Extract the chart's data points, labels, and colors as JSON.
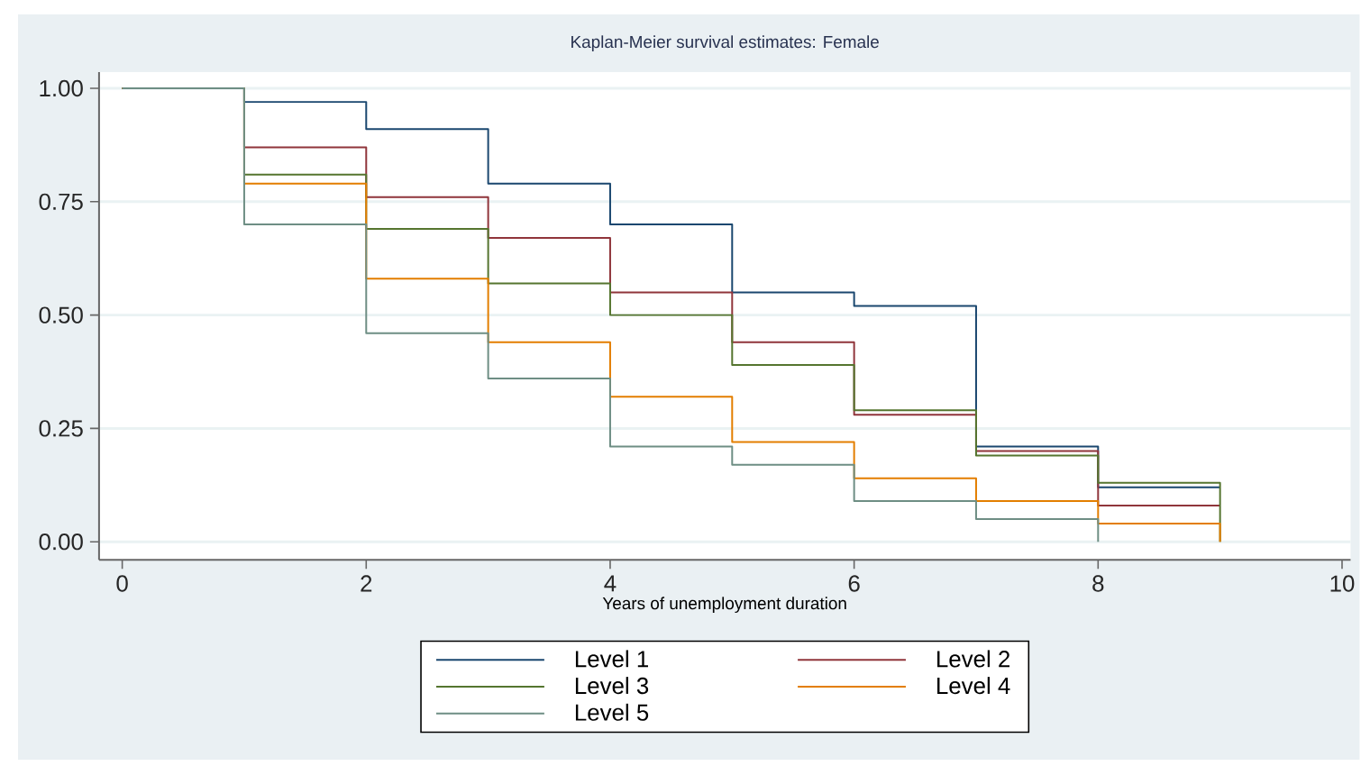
{
  "chart_data": {
    "type": "step",
    "title": "Kaplan-Meier survival estimates: Female",
    "xlabel": "Years of unemployment duration",
    "xlim": [
      -0.19,
      10.07
    ],
    "ylim": [
      -0.04,
      1.036
    ],
    "xticks": [
      0,
      2,
      4,
      6,
      8,
      10
    ],
    "yticks": [
      {
        "value": 0,
        "label": "0.00"
      },
      {
        "value": 0.25,
        "label": "0.25"
      },
      {
        "value": 0.5,
        "label": "0.50"
      },
      {
        "value": 0.75,
        "label": "0.75"
      },
      {
        "value": 1,
        "label": "1.00"
      }
    ],
    "grid": "y",
    "legend": "bottom",
    "series": [
      {
        "name": "Level 1",
        "color": "#1a476f",
        "x": [
          0,
          1,
          2,
          3,
          4,
          5,
          6,
          7,
          8,
          9
        ],
        "values": [
          1.0,
          0.97,
          0.91,
          0.79,
          0.7,
          0.55,
          0.52,
          0.21,
          0.12,
          0.12
        ]
      },
      {
        "name": "Level 2",
        "color": "#90353b",
        "x": [
          0,
          1,
          2,
          3,
          4,
          5,
          6,
          7,
          8,
          9
        ],
        "values": [
          1.0,
          0.87,
          0.76,
          0.67,
          0.55,
          0.44,
          0.28,
          0.2,
          0.08,
          0.08
        ]
      },
      {
        "name": "Level 3",
        "color": "#55752f",
        "x": [
          0,
          1,
          2,
          3,
          4,
          5,
          6,
          7,
          8,
          9
        ],
        "values": [
          1.0,
          0.81,
          0.69,
          0.57,
          0.5,
          0.39,
          0.29,
          0.19,
          0.13,
          0.0
        ]
      },
      {
        "name": "Level 4",
        "color": "#e37e00",
        "x": [
          0,
          1,
          2,
          3,
          4,
          5,
          6,
          7,
          8,
          9
        ],
        "values": [
          1.0,
          0.79,
          0.58,
          0.44,
          0.32,
          0.22,
          0.14,
          0.09,
          0.04,
          0.0
        ]
      },
      {
        "name": "Level 5",
        "color": "#6e8e84",
        "x": [
          0,
          1,
          2,
          3,
          4,
          5,
          6,
          7,
          8
        ],
        "values": [
          1.0,
          0.7,
          0.46,
          0.36,
          0.21,
          0.17,
          0.09,
          0.05,
          0.0
        ]
      }
    ]
  }
}
